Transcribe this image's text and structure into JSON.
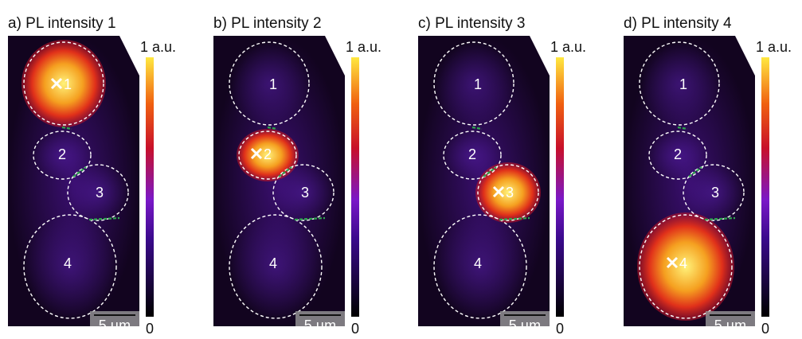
{
  "panels": [
    {
      "title": "a) PL intensity 1",
      "colorbar_max": "1 a.u.",
      "colorbar_min": "0",
      "scale_bar": "5 µm",
      "regions": [
        "1",
        "2",
        "3",
        "4"
      ]
    },
    {
      "title": "b) PL intensity 2",
      "colorbar_max": "1 a.u.",
      "colorbar_min": "0",
      "scale_bar": "5 µm",
      "regions": [
        "1",
        "2",
        "3",
        "4"
      ]
    },
    {
      "title": "c) PL intensity 3",
      "colorbar_max": "1 a.u.",
      "colorbar_min": "0",
      "scale_bar": "5 µm",
      "regions": [
        "1",
        "2",
        "3",
        "4"
      ]
    },
    {
      "title": "d) PL intensity 4",
      "colorbar_max": "1 a.u.",
      "colorbar_min": "0",
      "scale_bar": "5 µm",
      "regions": [
        "1",
        "2",
        "3",
        "4"
      ]
    }
  ]
}
